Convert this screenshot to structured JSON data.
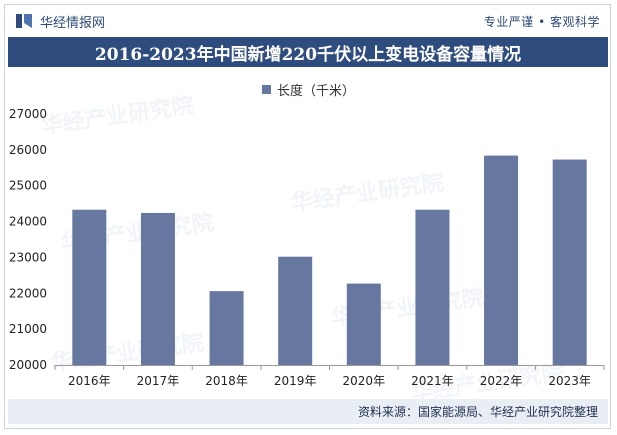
{
  "header": {
    "brand": "华经情报网",
    "slogan": "专业严谨 • 客观科学"
  },
  "footer": {
    "source": "资料来源：国家能源局、华经产业研究院整理"
  },
  "watermark": {
    "text": "华经产业研究院"
  },
  "colors": {
    "bar": "#6677a0",
    "title_bg": "#2f4c7f",
    "footer_bg": "#e9edf4"
  },
  "chart_data": {
    "type": "bar",
    "title": "2016-2023年中国新增220千伏以上变电设备容量情况",
    "categories": [
      "2016年",
      "2017年",
      "2018年",
      "2019年",
      "2020年",
      "2021年",
      "2022年",
      "2023年"
    ],
    "series": [
      {
        "name": "长度（千米）",
        "values": [
          24330,
          24240,
          22060,
          23020,
          22270,
          24330,
          25840,
          25730
        ]
      }
    ],
    "ylim": [
      20000,
      27000
    ],
    "yticks": [
      20000,
      21000,
      22000,
      23000,
      24000,
      25000,
      26000,
      27000
    ],
    "xlabel": "",
    "ylabel": "",
    "legend": "top-center",
    "grid": false
  }
}
